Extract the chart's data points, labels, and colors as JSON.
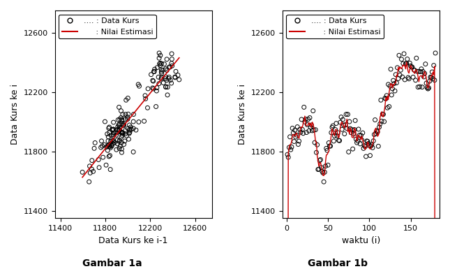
{
  "title_a": "Gambar 1a",
  "title_b": "Gambar 1b",
  "xlabel_a": "Data Kurs ke i-1",
  "ylabel_a": "Data Kurs ke i",
  "xlabel_b": "waktu (i)",
  "ylabel_b": "Data Kurs ke i",
  "xlim_a": [
    11350,
    12750
  ],
  "ylim_a": [
    11350,
    12750
  ],
  "xticks_a": [
    11400,
    11800,
    12200,
    12600
  ],
  "yticks_a": [
    11400,
    11800,
    12200,
    12600
  ],
  "xlim_b": [
    -5,
    185
  ],
  "ylim_b": [
    11350,
    12750
  ],
  "xticks_b": [
    0,
    50,
    100,
    150
  ],
  "yticks_b": [
    11400,
    11800,
    12200,
    12600
  ],
  "legend_data_label": ".... : Data Kurs",
  "legend_est_label": "     : Nilai Estimasi",
  "scatter_color": "#000000",
  "scatter_facecolor": "none",
  "line_color": "#cc0000",
  "background_color": "#ffffff",
  "fontsize_axis_label": 9,
  "fontsize_tick": 8,
  "fontsize_title": 10,
  "fontsize_legend": 8
}
